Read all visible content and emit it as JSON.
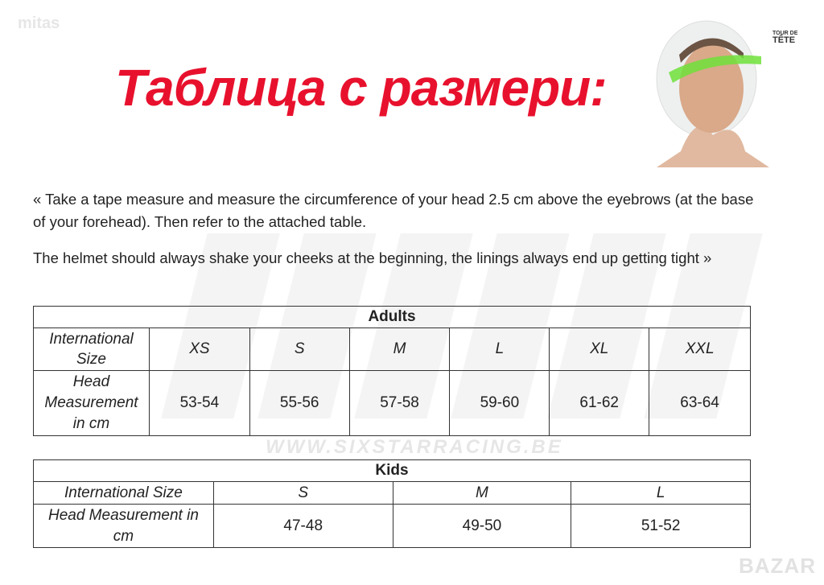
{
  "watermarks": {
    "top_left": "mitas",
    "background": "SIXSTAR",
    "background_sub": "WWW.SIXSTARRACING.BE",
    "bottom_right": "BAZAR"
  },
  "title": "Таблица с размери:",
  "image": {
    "label_small": "TOUR DE",
    "label_big": "TÊTE"
  },
  "paragraphs": [
    "« Take a tape measure and measure the circumference of your head 2.5 cm above the eyebrows (at the base of your forehead). Then refer to the attached table.",
    "The helmet should always shake your cheeks at the beginning, the linings always end up getting tight »"
  ],
  "adults": {
    "heading": "Adults",
    "size_label": "International Size",
    "measure_label": "Head Measurement in cm",
    "sizes": [
      "XS",
      "S",
      "M",
      "L",
      "XL",
      "XXL"
    ],
    "measures": [
      "53-54",
      "55-56",
      "57-58",
      "59-60",
      "61-62",
      "63-64"
    ]
  },
  "kids": {
    "heading": "Kids",
    "size_label": "International Size",
    "measure_label": "Head Measurement in cm",
    "sizes": [
      "S",
      "M",
      "L"
    ],
    "measures": [
      "47-48",
      "49-50",
      "51-52"
    ]
  },
  "colors": {
    "title": "#e8112d",
    "band": "#6ee03a"
  }
}
